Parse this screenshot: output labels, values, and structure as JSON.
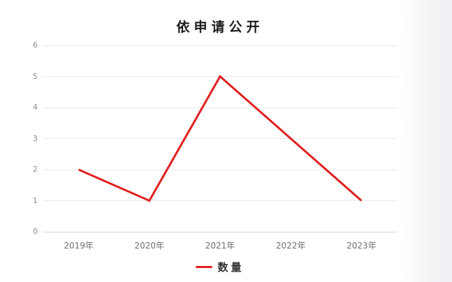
{
  "title": "依申请公开",
  "colors": {
    "line": "#e02020",
    "grid": "#e9e9e9",
    "axis_line": "#d5d5d5",
    "ytick_text": "#8c8c8c",
    "xtick_text": "#6f6f6f",
    "title_text": "#1c1c1c",
    "side_panel": "#f3f4f6"
  },
  "legend": {
    "items": [
      {
        "label": "数量",
        "color": "#e02020"
      }
    ]
  },
  "chart_data": {
    "type": "line",
    "title": "依申请公开",
    "categories": [
      "2019年",
      "2020年",
      "2021年",
      "2022年",
      "2023年"
    ],
    "series": [
      {
        "name": "数量",
        "color": "#e02020",
        "values": [
          2,
          1,
          5,
          3,
          1
        ]
      }
    ],
    "xlabel": "",
    "ylabel": "",
    "ylim": [
      0,
      6
    ],
    "ytick_step": 1,
    "yticks": [
      0,
      1,
      2,
      3,
      4,
      5,
      6
    ],
    "grid": true,
    "legend_position": "bottom"
  }
}
